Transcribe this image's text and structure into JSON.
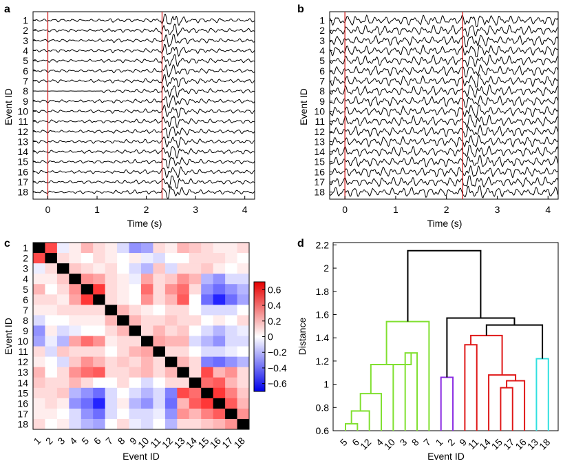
{
  "chart_data": [
    {
      "panel": "a",
      "type": "line",
      "title": "",
      "xlabel": "Time (s)",
      "ylabel": "Event ID",
      "xlim": [
        -0.3,
        4.2
      ],
      "xticks": [
        0,
        1,
        2,
        3,
        4
      ],
      "event_ids": [
        "1",
        "2",
        "3",
        "4",
        "5",
        "6",
        "7",
        "8",
        "9",
        "10",
        "11",
        "12",
        "13",
        "14",
        "15",
        "16",
        "17",
        "18"
      ],
      "markers_s": [
        0,
        2.32
      ],
      "marker_color": "#d42020"
    },
    {
      "panel": "b",
      "type": "line",
      "title": "",
      "xlabel": "Time (s)",
      "ylabel": "Event ID",
      "xlim": [
        -0.3,
        4.2
      ],
      "xticks": [
        0,
        1,
        2,
        3,
        4
      ],
      "event_ids": [
        "1",
        "2",
        "3",
        "4",
        "5",
        "6",
        "7",
        "8",
        "9",
        "10",
        "11",
        "12",
        "13",
        "14",
        "15",
        "16",
        "17",
        "18"
      ],
      "markers_s": [
        0,
        2.32
      ],
      "marker_color": "#d42020"
    },
    {
      "panel": "c",
      "type": "heatmap",
      "title": "",
      "xlabel": "Event ID",
      "ylabel": "Event ID",
      "labels": [
        "1",
        "2",
        "3",
        "4",
        "5",
        "6",
        "7",
        "8",
        "9",
        "10",
        "11",
        "12",
        "13",
        "14",
        "15",
        "16",
        "17",
        "18"
      ],
      "colorbar_ticks": [
        "0.6",
        "0.4",
        "0.2",
        "0",
        "−0.2",
        "−0.4",
        "−0.6"
      ],
      "colorbar_range": [
        -0.7,
        0.7
      ],
      "diagonal": "self",
      "upper": [
        [
          0.5,
          -0.05,
          0.05,
          0.2,
          0.1,
          0.05,
          -0.1,
          -0.3,
          -0.25,
          0.1,
          0.05,
          0.2,
          0.15,
          0.1,
          0.05,
          0.05,
          0.1
        ],
        [
          0.1,
          0.05,
          0.0,
          0.1,
          0.05,
          0.0,
          0.05,
          -0.05,
          -0.1,
          0.0,
          0.0,
          0.1,
          0.1,
          0.1,
          0.05,
          0.0
        ],
        [
          0.15,
          0.1,
          0.05,
          0.1,
          0.0,
          -0.1,
          -0.2,
          0.15,
          -0.1,
          0.1,
          0.1,
          0.15,
          0.05,
          0.0,
          0.05
        ],
        [
          0.3,
          0.25,
          0.1,
          0.05,
          -0.05,
          0.25,
          0.1,
          0.15,
          0.3,
          0.2,
          -0.2,
          -0.3,
          -0.1,
          -0.1
        ],
        [
          0.55,
          0.1,
          0.05,
          0.0,
          0.4,
          0.1,
          0.3,
          0.4,
          0.1,
          -0.3,
          -0.4,
          -0.3,
          -0.2
        ],
        [
          0.1,
          0.05,
          0.0,
          0.3,
          0.1,
          0.2,
          0.45,
          0.0,
          -0.4,
          -0.6,
          -0.4,
          -0.25
        ],
        [
          0.2,
          0.1,
          0.05,
          0.0,
          0.1,
          0.1,
          0.0,
          -0.1,
          -0.1,
          -0.1,
          0.0
        ],
        [
          0.2,
          0.1,
          0.1,
          0.15,
          0.1,
          0.1,
          0.0,
          0.05,
          0.0,
          0.1
        ],
        [
          0.1,
          0.2,
          0.1,
          0.15,
          0.0,
          -0.1,
          -0.2,
          -0.1,
          -0.05
        ],
        [
          0.25,
          0.2,
          0.2,
          -0.1,
          -0.2,
          -0.3,
          -0.1,
          -0.1
        ],
        [
          0.1,
          0.1,
          0.0,
          -0.1,
          -0.1,
          -0.05,
          0.0
        ],
        [
          0.2,
          0.1,
          -0.35,
          -0.4,
          -0.3,
          -0.2
        ],
        [
          0.1,
          0.5,
          0.2,
          0.3,
          0.1
        ],
        [
          0.4,
          0.45,
          0.2,
          0.1
        ],
        [
          0.55,
          0.35,
          0.15
        ],
        [
          0.45,
          0.2
        ],
        [
          0.3
        ]
      ]
    },
    {
      "panel": "d",
      "type": "dendrogram",
      "title": "",
      "xlabel": "Event ID",
      "ylabel": "Distance",
      "ylim": [
        0.6,
        2.22
      ],
      "yticks": [
        "0.6",
        "0.8",
        "1",
        "1.2",
        "1.4",
        "1.6",
        "1.8",
        "2",
        "2.2"
      ],
      "leaves": [
        "5",
        "6",
        "12",
        "4",
        "10",
        "3",
        "8",
        "7",
        "1",
        "2",
        "9",
        "11",
        "14",
        "15",
        "17",
        "16",
        "13",
        "18"
      ],
      "links": [
        {
          "a": 0,
          "b": 1,
          "h": 0.66,
          "color": "#80e030"
        },
        {
          "a": "n0",
          "b": 2,
          "h": 0.77,
          "color": "#80e030"
        },
        {
          "a": "n1",
          "b": 3,
          "h": 0.92,
          "color": "#80e030"
        },
        {
          "a": 5,
          "b": 6,
          "h": 1.27,
          "color": "#80e030"
        },
        {
          "a": 4,
          "b": "n3",
          "h": 1.17,
          "color": "#80e030"
        },
        {
          "a": "n2",
          "b": "n4",
          "h": 1.17,
          "color": "#80e030"
        },
        {
          "a": "n5",
          "b": 7,
          "h": 1.54,
          "color": "#80e030"
        },
        {
          "a": 8,
          "b": 9,
          "h": 1.06,
          "color": "#8a2be2"
        },
        {
          "a": 10,
          "b": 11,
          "h": 1.34,
          "color": "#e01818"
        },
        {
          "a": 13,
          "b": 14,
          "h": 0.97,
          "color": "#e01818"
        },
        {
          "a": "n9",
          "b": 15,
          "h": 1.03,
          "color": "#e01818"
        },
        {
          "a": 12,
          "b": "n10",
          "h": 1.08,
          "color": "#e01818"
        },
        {
          "a": "n8",
          "b": "n11",
          "h": 1.42,
          "color": "#e01818"
        },
        {
          "a": 16,
          "b": 17,
          "h": 1.22,
          "color": "#30e0e0"
        },
        {
          "a": "n12",
          "b": "n13",
          "h": 1.51,
          "color": "#000000"
        },
        {
          "a": "n7",
          "b": "n14",
          "h": 1.57,
          "color": "#000000"
        },
        {
          "a": "n6",
          "b": "n15",
          "h": 2.15,
          "color": "#000000"
        }
      ]
    }
  ]
}
